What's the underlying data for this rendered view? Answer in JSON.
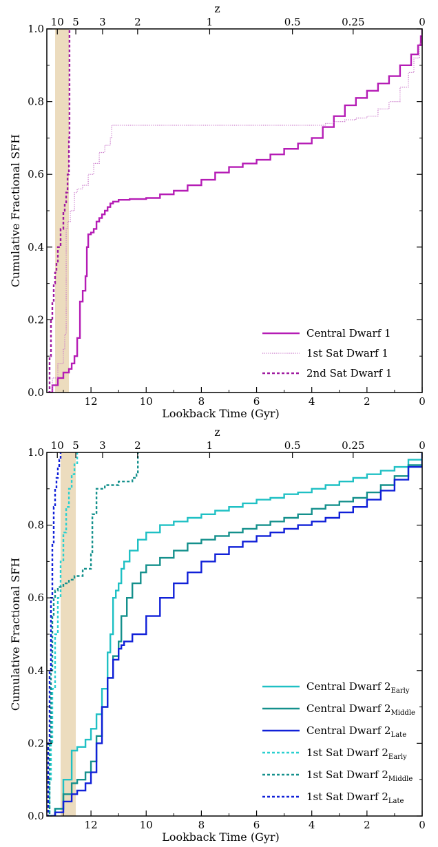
{
  "chart_data": [
    {
      "type": "line",
      "xlabel": "Lookback Time (Gyr)",
      "ylabel": "Cumulative Fractional SFH",
      "top_xlabel": "z",
      "xlim": [
        13.6,
        0
      ],
      "ylim": [
        0,
        1
      ],
      "xticks": [
        12,
        10,
        8,
        6,
        4,
        2,
        0
      ],
      "xtick_labels": [
        "12",
        "10",
        "8",
        "6",
        "4",
        "2",
        "0"
      ],
      "yticks": [
        0,
        0.2,
        0.4,
        0.6,
        0.8,
        1.0
      ],
      "ytick_labels": [
        "0.0",
        "0.2",
        "0.4",
        "0.6",
        "0.8",
        "1.0"
      ],
      "top_ticks": [
        {
          "label": "10",
          "t": 13.22
        },
        {
          "label": "5",
          "t": 12.55
        },
        {
          "label": "3",
          "t": 11.58
        },
        {
          "label": "2",
          "t": 10.31
        },
        {
          "label": "1",
          "t": 7.7
        },
        {
          "label": "0.5",
          "t": 4.7
        },
        {
          "label": "0.25",
          "t": 2.5
        },
        {
          "label": "0",
          "t": 0
        }
      ],
      "shaded_band": {
        "from": 13.3,
        "to": 12.8,
        "color": "#ecdcbe"
      },
      "legend_position": "lower-right",
      "series": [
        {
          "name": "Central Dwarf 1",
          "name_sub": "",
          "style": "solid",
          "color": "#b51cb5",
          "x": [
            13.55,
            13.4,
            13.2,
            13.0,
            12.8,
            12.7,
            12.6,
            12.5,
            12.4,
            12.3,
            12.2,
            12.15,
            12.1,
            12.0,
            11.9,
            11.8,
            11.7,
            11.6,
            11.5,
            11.4,
            11.3,
            11.2,
            11.0,
            10.6,
            10.0,
            9.5,
            9.0,
            8.5,
            8.0,
            7.5,
            7.0,
            6.5,
            6.0,
            5.5,
            5.0,
            4.5,
            4.0,
            3.6,
            3.2,
            2.8,
            2.4,
            2.0,
            1.6,
            1.2,
            0.8,
            0.4,
            0.15,
            0.05,
            0.0
          ],
          "y": [
            0.0,
            0.02,
            0.04,
            0.055,
            0.065,
            0.08,
            0.1,
            0.15,
            0.25,
            0.28,
            0.32,
            0.4,
            0.435,
            0.44,
            0.45,
            0.47,
            0.48,
            0.49,
            0.5,
            0.51,
            0.52,
            0.525,
            0.53,
            0.532,
            0.535,
            0.545,
            0.555,
            0.57,
            0.585,
            0.605,
            0.62,
            0.63,
            0.64,
            0.655,
            0.67,
            0.685,
            0.7,
            0.73,
            0.76,
            0.79,
            0.81,
            0.83,
            0.85,
            0.87,
            0.9,
            0.93,
            0.955,
            0.98,
            1.0
          ]
        },
        {
          "name": "1st Sat Dwarf 1",
          "name_sub": "",
          "style": "dotted",
          "color": "#c873c8",
          "x": [
            13.55,
            13.4,
            13.2,
            13.0,
            12.95,
            12.9,
            12.85,
            12.75,
            12.6,
            12.5,
            12.3,
            12.1,
            11.9,
            11.7,
            11.5,
            11.3,
            11.25,
            10.5,
            8.0,
            6.0,
            4.5,
            3.7,
            3.5,
            3.2,
            2.8,
            2.4,
            2.0,
            1.6,
            1.2,
            0.8,
            0.5,
            0.3,
            0.1,
            0.0
          ],
          "y": [
            0.0,
            0.04,
            0.08,
            0.12,
            0.16,
            0.45,
            0.47,
            0.5,
            0.55,
            0.56,
            0.57,
            0.6,
            0.63,
            0.66,
            0.68,
            0.7,
            0.735,
            0.735,
            0.735,
            0.735,
            0.735,
            0.735,
            0.74,
            0.745,
            0.75,
            0.755,
            0.76,
            0.78,
            0.8,
            0.84,
            0.88,
            0.92,
            0.96,
            1.0
          ]
        },
        {
          "name": "2nd Sat Dwarf 1",
          "name_sub": "",
          "style": "dashed",
          "color": "#a01aa0",
          "x": [
            13.55,
            13.5,
            13.45,
            13.4,
            13.35,
            13.3,
            13.25,
            13.2,
            13.1,
            13.0,
            12.95,
            12.9,
            12.85,
            12.8,
            12.78
          ],
          "y": [
            0.0,
            0.1,
            0.2,
            0.25,
            0.3,
            0.33,
            0.36,
            0.4,
            0.45,
            0.5,
            0.52,
            0.55,
            0.6,
            0.7,
            1.0
          ]
        }
      ]
    },
    {
      "type": "line",
      "xlabel": "Lookback Time (Gyr)",
      "ylabel": "Cumulative Fractional SFH",
      "top_xlabel": "z",
      "xlim": [
        13.6,
        0
      ],
      "ylim": [
        0,
        1
      ],
      "xticks": [
        12,
        10,
        8,
        6,
        4,
        2,
        0
      ],
      "xtick_labels": [
        "12",
        "10",
        "8",
        "6",
        "4",
        "2",
        "0"
      ],
      "yticks": [
        0,
        0.2,
        0.4,
        0.6,
        0.8,
        1.0
      ],
      "ytick_labels": [
        "0.0",
        "0.2",
        "0.4",
        "0.6",
        "0.8",
        "1.0"
      ],
      "top_ticks": [
        {
          "label": "10",
          "t": 13.22
        },
        {
          "label": "5",
          "t": 12.55
        },
        {
          "label": "3",
          "t": 11.58
        },
        {
          "label": "2",
          "t": 10.31
        },
        {
          "label": "1",
          "t": 7.7
        },
        {
          "label": "0.5",
          "t": 4.7
        },
        {
          "label": "0.25",
          "t": 2.5
        },
        {
          "label": "0",
          "t": 0
        }
      ],
      "shaded_band": {
        "from": 13.1,
        "to": 12.55,
        "color": "#ecdcbe"
      },
      "legend_position": "lower-right",
      "series": [
        {
          "name": "Central Dwarf 2",
          "name_sub": "Early",
          "style": "solid",
          "color": "#1fc0c4",
          "x": [
            13.55,
            13.3,
            13.0,
            12.7,
            12.5,
            12.2,
            12.0,
            11.8,
            11.6,
            11.4,
            11.3,
            11.2,
            11.1,
            11.0,
            10.9,
            10.8,
            10.6,
            10.3,
            10.0,
            9.5,
            9.0,
            8.5,
            8.0,
            7.5,
            7.0,
            6.5,
            6.0,
            5.5,
            5.0,
            4.5,
            4.0,
            3.5,
            3.0,
            2.5,
            2.0,
            1.5,
            1.0,
            0.5,
            0.0
          ],
          "y": [
            0.0,
            0.02,
            0.1,
            0.18,
            0.19,
            0.21,
            0.24,
            0.28,
            0.35,
            0.45,
            0.5,
            0.6,
            0.62,
            0.64,
            0.68,
            0.7,
            0.73,
            0.76,
            0.78,
            0.8,
            0.81,
            0.82,
            0.83,
            0.84,
            0.85,
            0.86,
            0.87,
            0.875,
            0.885,
            0.89,
            0.9,
            0.91,
            0.92,
            0.93,
            0.94,
            0.95,
            0.96,
            0.98,
            1.0
          ]
        },
        {
          "name": "Central Dwarf 2",
          "name_sub": "Middle",
          "style": "solid",
          "color": "#14908c",
          "x": [
            13.55,
            13.3,
            13.0,
            12.7,
            12.5,
            12.2,
            12.0,
            11.8,
            11.6,
            11.4,
            11.2,
            11.0,
            10.9,
            10.7,
            10.5,
            10.2,
            10.0,
            9.5,
            9.0,
            8.5,
            8.0,
            7.5,
            7.0,
            6.5,
            6.0,
            5.5,
            5.0,
            4.5,
            4.0,
            3.5,
            3.0,
            2.5,
            2.0,
            1.5,
            1.0,
            0.5,
            0.0
          ],
          "y": [
            0.0,
            0.02,
            0.06,
            0.09,
            0.1,
            0.12,
            0.15,
            0.22,
            0.3,
            0.38,
            0.44,
            0.48,
            0.55,
            0.6,
            0.64,
            0.67,
            0.69,
            0.71,
            0.73,
            0.75,
            0.76,
            0.77,
            0.78,
            0.79,
            0.8,
            0.81,
            0.82,
            0.83,
            0.845,
            0.855,
            0.865,
            0.875,
            0.89,
            0.91,
            0.935,
            0.965,
            1.0
          ]
        },
        {
          "name": "Central Dwarf 2",
          "name_sub": "Late",
          "style": "solid",
          "color": "#1020d8",
          "x": [
            13.55,
            13.3,
            13.0,
            12.7,
            12.5,
            12.2,
            12.0,
            11.8,
            11.6,
            11.4,
            11.2,
            11.0,
            10.9,
            10.8,
            10.5,
            10.0,
            9.5,
            9.0,
            8.5,
            8.0,
            7.5,
            7.0,
            6.5,
            6.0,
            5.5,
            5.0,
            4.5,
            4.0,
            3.5,
            3.0,
            2.5,
            2.0,
            1.5,
            1.0,
            0.5,
            0.0
          ],
          "y": [
            0.0,
            0.01,
            0.04,
            0.06,
            0.07,
            0.09,
            0.12,
            0.2,
            0.3,
            0.38,
            0.43,
            0.46,
            0.47,
            0.48,
            0.5,
            0.55,
            0.6,
            0.64,
            0.67,
            0.7,
            0.72,
            0.74,
            0.755,
            0.77,
            0.78,
            0.79,
            0.8,
            0.81,
            0.82,
            0.835,
            0.85,
            0.87,
            0.895,
            0.925,
            0.96,
            1.0
          ]
        },
        {
          "name": "1st Sat Dwarf 2",
          "name_sub": "Early",
          "style": "dashed",
          "color": "#2ad0d0",
          "x": [
            13.55,
            13.5,
            13.45,
            13.4,
            13.3,
            13.2,
            13.1,
            13.0,
            12.9,
            12.8,
            12.7,
            12.6,
            12.5
          ],
          "y": [
            0.0,
            0.1,
            0.2,
            0.35,
            0.5,
            0.6,
            0.7,
            0.78,
            0.85,
            0.9,
            0.94,
            0.97,
            1.0
          ]
        },
        {
          "name": "1st Sat Dwarf 2",
          "name_sub": "Middle",
          "style": "dashed",
          "color": "#14908c",
          "x": [
            13.6,
            13.5,
            13.45,
            13.4,
            13.35,
            13.3,
            13.2,
            13.0,
            12.8,
            12.6,
            12.3,
            12.0,
            11.95,
            11.8,
            11.5,
            11.0,
            10.5,
            10.35,
            10.3
          ],
          "y": [
            0.0,
            0.2,
            0.4,
            0.55,
            0.6,
            0.62,
            0.63,
            0.64,
            0.65,
            0.66,
            0.68,
            0.72,
            0.83,
            0.9,
            0.91,
            0.92,
            0.93,
            0.94,
            1.0
          ]
        },
        {
          "name": "1st Sat Dwarf 2",
          "name_sub": "Late",
          "style": "dashed",
          "color": "#1020d8",
          "x": [
            13.6,
            13.55,
            13.5,
            13.45,
            13.4,
            13.35,
            13.3,
            13.25,
            13.2,
            13.15,
            13.1
          ],
          "y": [
            0.0,
            0.2,
            0.4,
            0.6,
            0.75,
            0.85,
            0.9,
            0.93,
            0.96,
            0.98,
            1.0
          ]
        }
      ]
    }
  ]
}
